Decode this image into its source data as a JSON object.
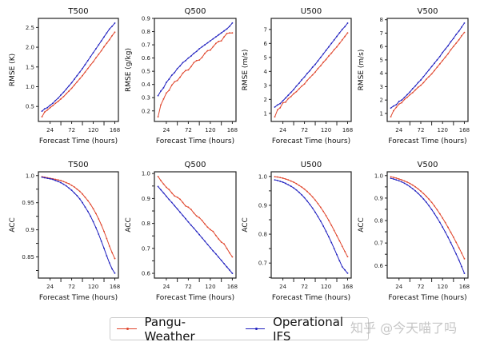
{
  "legend": {
    "position": "bottom-center",
    "items": [
      {
        "name": "Pangu-Weather",
        "color": "#e0452c"
      },
      {
        "name": "Operational IFS",
        "color": "#1f1fbf"
      }
    ]
  },
  "watermark": "知乎 @今天喵了吗",
  "chart_data": [
    {
      "type": "line",
      "title": "T500",
      "xlabel": "Forecast Time (hours)",
      "ylabel": "RMSE (K)",
      "x": [
        6,
        12,
        18,
        24,
        30,
        36,
        42,
        48,
        54,
        60,
        66,
        72,
        78,
        84,
        90,
        96,
        102,
        108,
        114,
        120,
        126,
        132,
        138,
        144,
        150,
        156,
        162,
        168
      ],
      "xticks": [
        24,
        72,
        120,
        168
      ],
      "xminor": [
        48,
        96,
        144
      ],
      "xlim": [
        -2,
        176
      ],
      "ylim": [
        0.12,
        2.73
      ],
      "yticks": [
        0.5,
        1.0,
        1.5,
        2.0,
        2.5
      ],
      "ytick_labels": [
        "0.5",
        "1.0",
        "1.5",
        "2.0",
        "2.5"
      ],
      "yminor": [],
      "series": [
        {
          "name": "Pangu-Weather",
          "values": [
            0.24,
            0.36,
            0.41,
            0.47,
            0.52,
            0.58,
            0.63,
            0.69,
            0.75,
            0.82,
            0.89,
            0.96,
            1.04,
            1.12,
            1.2,
            1.28,
            1.37,
            1.46,
            1.55,
            1.63,
            1.73,
            1.82,
            1.91,
            2.01,
            2.1,
            2.19,
            2.29,
            2.38
          ]
        },
        {
          "name": "Operational IFS",
          "values": [
            0.38,
            0.44,
            0.47,
            0.53,
            0.58,
            0.65,
            0.71,
            0.79,
            0.86,
            0.94,
            1.02,
            1.1,
            1.19,
            1.28,
            1.37,
            1.46,
            1.56,
            1.66,
            1.76,
            1.86,
            1.96,
            2.06,
            2.16,
            2.26,
            2.36,
            2.46,
            2.53,
            2.61
          ]
        }
      ]
    },
    {
      "type": "line",
      "title": "Q500",
      "xlabel": "Forecast Time (hours)",
      "ylabel": "RMSE (g/kg)",
      "x": [
        6,
        12,
        18,
        24,
        30,
        36,
        42,
        48,
        54,
        60,
        66,
        72,
        78,
        84,
        90,
        96,
        102,
        108,
        114,
        120,
        126,
        132,
        138,
        144,
        150,
        156,
        162,
        168
      ],
      "xticks": [
        24,
        72,
        120,
        168
      ],
      "xminor": [
        48,
        96,
        144
      ],
      "xlim": [
        -2,
        176
      ],
      "ylim": [
        0.12,
        0.9
      ],
      "yticks": [
        0.2,
        0.3,
        0.4,
        0.5,
        0.6,
        0.7,
        0.8,
        0.9
      ],
      "ytick_labels": [
        "0.2",
        "0.3",
        "0.4",
        "0.5",
        "0.6",
        "0.7",
        "0.8",
        "0.9"
      ],
      "yminor": [],
      "series": [
        {
          "name": "Pangu-Weather",
          "values": [
            0.155,
            0.245,
            0.29,
            0.335,
            0.355,
            0.395,
            0.42,
            0.43,
            0.455,
            0.485,
            0.505,
            0.51,
            0.535,
            0.565,
            0.58,
            0.585,
            0.605,
            0.635,
            0.655,
            0.66,
            0.685,
            0.71,
            0.725,
            0.73,
            0.76,
            0.785,
            0.79,
            0.79
          ]
        },
        {
          "name": "Operational IFS",
          "values": [
            0.315,
            0.35,
            0.375,
            0.415,
            0.44,
            0.47,
            0.49,
            0.52,
            0.54,
            0.565,
            0.58,
            0.6,
            0.615,
            0.635,
            0.65,
            0.67,
            0.685,
            0.7,
            0.715,
            0.73,
            0.745,
            0.76,
            0.775,
            0.79,
            0.805,
            0.82,
            0.84,
            0.865
          ]
        }
      ]
    },
    {
      "type": "line",
      "title": "U500",
      "xlabel": "Forecast Time (hours)",
      "ylabel": "RMSE (m/s)",
      "x": [
        6,
        12,
        18,
        24,
        30,
        36,
        42,
        48,
        54,
        60,
        66,
        72,
        78,
        84,
        90,
        96,
        102,
        108,
        114,
        120,
        126,
        132,
        138,
        144,
        150,
        156,
        162,
        168
      ],
      "xticks": [
        24,
        72,
        120,
        168
      ],
      "xminor": [
        48,
        96,
        144
      ],
      "xlim": [
        -2,
        176
      ],
      "ylim": [
        0.42,
        7.79
      ],
      "yticks": [
        1,
        2,
        3,
        4,
        5,
        6,
        7
      ],
      "ytick_labels": [
        "1",
        "2",
        "3",
        "4",
        "5",
        "6",
        "7"
      ],
      "yminor": [],
      "series": [
        {
          "name": "Pangu-Weather",
          "values": [
            0.75,
            1.25,
            1.4,
            1.75,
            1.8,
            2.05,
            2.2,
            2.4,
            2.55,
            2.75,
            2.95,
            3.1,
            3.35,
            3.55,
            3.75,
            3.95,
            4.2,
            4.4,
            4.65,
            4.85,
            5.1,
            5.3,
            5.55,
            5.75,
            6.0,
            6.25,
            6.5,
            6.75
          ]
        },
        {
          "name": "Operational IFS",
          "values": [
            1.45,
            1.6,
            1.7,
            1.9,
            2.1,
            2.3,
            2.5,
            2.7,
            2.95,
            3.15,
            3.4,
            3.6,
            3.85,
            4.05,
            4.3,
            4.5,
            4.75,
            5.0,
            5.25,
            5.5,
            5.75,
            6.0,
            6.25,
            6.5,
            6.75,
            7.0,
            7.2,
            7.45
          ]
        }
      ]
    },
    {
      "type": "line",
      "title": "V500",
      "xlabel": "Forecast Time (hours)",
      "ylabel": "RMSE (m/s)",
      "x": [
        6,
        12,
        18,
        24,
        30,
        36,
        42,
        48,
        54,
        60,
        66,
        72,
        78,
        84,
        90,
        96,
        102,
        108,
        114,
        120,
        126,
        132,
        138,
        144,
        150,
        156,
        162,
        168
      ],
      "xticks": [
        24,
        72,
        120,
        168
      ],
      "xminor": [
        48,
        96,
        144
      ],
      "xlim": [
        -2,
        176
      ],
      "ylim": [
        0.4,
        8.1
      ],
      "yticks": [
        1,
        2,
        3,
        4,
        5,
        6,
        7,
        8
      ],
      "ytick_labels": [
        "1",
        "2",
        "3",
        "4",
        "5",
        "6",
        "7",
        "8"
      ],
      "yminor": [],
      "series": [
        {
          "name": "Pangu-Weather",
          "values": [
            0.75,
            1.2,
            1.45,
            1.7,
            1.8,
            2.05,
            2.2,
            2.4,
            2.55,
            2.75,
            2.95,
            3.1,
            3.3,
            3.55,
            3.75,
            3.95,
            4.2,
            4.45,
            4.7,
            4.95,
            5.2,
            5.45,
            5.75,
            6.0,
            6.25,
            6.5,
            6.8,
            7.05
          ]
        },
        {
          "name": "Operational IFS",
          "values": [
            1.4,
            1.55,
            1.65,
            1.9,
            2.0,
            2.2,
            2.4,
            2.6,
            2.85,
            3.05,
            3.3,
            3.5,
            3.75,
            4.0,
            4.25,
            4.5,
            4.75,
            5.0,
            5.25,
            5.55,
            5.8,
            6.05,
            6.35,
            6.6,
            6.9,
            7.15,
            7.45,
            7.75
          ]
        }
      ]
    },
    {
      "type": "line",
      "title": "T500",
      "xlabel": "Forecast Time (hours)",
      "ylabel": "ACC",
      "x": [
        6,
        12,
        18,
        24,
        30,
        36,
        42,
        48,
        54,
        60,
        66,
        72,
        78,
        84,
        90,
        96,
        102,
        108,
        114,
        120,
        126,
        132,
        138,
        144,
        150,
        156,
        162,
        168
      ],
      "xticks": [
        24,
        72,
        120,
        168
      ],
      "xminor": [
        48,
        96,
        144
      ],
      "xlim": [
        -2,
        176
      ],
      "ylim": [
        0.811,
        1.007
      ],
      "yticks": [
        0.85,
        0.9,
        0.95,
        1.0
      ],
      "ytick_labels": [
        "0.85",
        "0.9",
        "0.95",
        "1.0"
      ],
      "yminor": [
        0.825,
        0.875,
        0.925,
        0.975
      ],
      "series": [
        {
          "name": "Pangu-Weather",
          "values": [
            0.998,
            0.997,
            0.996,
            0.995,
            0.994,
            0.993,
            0.992,
            0.991,
            0.989,
            0.987,
            0.985,
            0.982,
            0.979,
            0.975,
            0.971,
            0.966,
            0.96,
            0.954,
            0.947,
            0.939,
            0.93,
            0.92,
            0.909,
            0.897,
            0.884,
            0.87,
            0.858,
            0.847
          ]
        },
        {
          "name": "Operational IFS",
          "values": [
            0.997,
            0.996,
            0.995,
            0.994,
            0.993,
            0.991,
            0.989,
            0.987,
            0.984,
            0.981,
            0.977,
            0.973,
            0.968,
            0.963,
            0.957,
            0.95,
            0.942,
            0.934,
            0.925,
            0.915,
            0.904,
            0.892,
            0.879,
            0.866,
            0.852,
            0.839,
            0.828,
            0.82
          ]
        }
      ]
    },
    {
      "type": "line",
      "title": "Q500",
      "xlabel": "Forecast Time (hours)",
      "ylabel": "ACC",
      "x": [
        6,
        12,
        18,
        24,
        30,
        36,
        42,
        48,
        54,
        60,
        66,
        72,
        78,
        84,
        90,
        96,
        102,
        108,
        114,
        120,
        126,
        132,
        138,
        144,
        150,
        156,
        162,
        168
      ],
      "xticks": [
        24,
        72,
        120,
        168
      ],
      "xminor": [
        48,
        96,
        144
      ],
      "xlim": [
        -2,
        176
      ],
      "ylim": [
        0.581,
        1.007
      ],
      "yticks": [
        0.6,
        0.7,
        0.8,
        0.9,
        1.0
      ],
      "ytick_labels": [
        "0.6",
        "0.7",
        "0.8",
        "0.9",
        "1.0"
      ],
      "yminor": [
        0.65,
        0.75,
        0.85,
        0.95
      ],
      "series": [
        {
          "name": "Pangu-Weather",
          "values": [
            0.988,
            0.972,
            0.958,
            0.945,
            0.936,
            0.922,
            0.91,
            0.905,
            0.897,
            0.884,
            0.87,
            0.865,
            0.856,
            0.842,
            0.83,
            0.823,
            0.812,
            0.798,
            0.785,
            0.775,
            0.768,
            0.752,
            0.738,
            0.725,
            0.718,
            0.7,
            0.682,
            0.666
          ]
        },
        {
          "name": "Operational IFS",
          "values": [
            0.948,
            0.935,
            0.922,
            0.909,
            0.896,
            0.884,
            0.871,
            0.858,
            0.845,
            0.832,
            0.819,
            0.806,
            0.793,
            0.781,
            0.768,
            0.755,
            0.742,
            0.729,
            0.716,
            0.703,
            0.69,
            0.678,
            0.665,
            0.652,
            0.639,
            0.626,
            0.613,
            0.6
          ]
        }
      ]
    },
    {
      "type": "line",
      "title": "U500",
      "xlabel": "Forecast Time (hours)",
      "ylabel": "ACC",
      "x": [
        6,
        12,
        18,
        24,
        30,
        36,
        42,
        48,
        54,
        60,
        66,
        72,
        78,
        84,
        90,
        96,
        102,
        108,
        114,
        120,
        126,
        132,
        138,
        144,
        150,
        156,
        162,
        168
      ],
      "xticks": [
        24,
        72,
        120,
        168
      ],
      "xminor": [
        48,
        96,
        144
      ],
      "xlim": [
        -2,
        176
      ],
      "ylim": [
        0.648,
        1.016
      ],
      "yticks": [
        0.7,
        0.8,
        0.9,
        1.0
      ],
      "ytick_labels": [
        "0.7",
        "0.8",
        "0.9",
        "1.0"
      ],
      "yminor": [
        0.65,
        0.75,
        0.85,
        0.95
      ],
      "series": [
        {
          "name": "Pangu-Weather",
          "values": [
            0.999,
            0.998,
            0.996,
            0.994,
            0.991,
            0.988,
            0.984,
            0.98,
            0.975,
            0.969,
            0.963,
            0.956,
            0.948,
            0.939,
            0.929,
            0.918,
            0.906,
            0.893,
            0.879,
            0.864,
            0.848,
            0.831,
            0.813,
            0.795,
            0.777,
            0.758,
            0.74,
            0.722
          ]
        },
        {
          "name": "Operational IFS",
          "values": [
            0.988,
            0.986,
            0.983,
            0.98,
            0.976,
            0.971,
            0.966,
            0.96,
            0.953,
            0.945,
            0.936,
            0.926,
            0.915,
            0.903,
            0.89,
            0.876,
            0.861,
            0.845,
            0.828,
            0.81,
            0.791,
            0.771,
            0.75,
            0.729,
            0.708,
            0.687,
            0.676,
            0.665
          ]
        }
      ]
    },
    {
      "type": "line",
      "title": "V500",
      "xlabel": "Forecast Time (hours)",
      "ylabel": "ACC",
      "x": [
        6,
        12,
        18,
        24,
        30,
        36,
        42,
        48,
        54,
        60,
        66,
        72,
        78,
        84,
        90,
        96,
        102,
        108,
        114,
        120,
        126,
        132,
        138,
        144,
        150,
        156,
        162,
        168
      ],
      "xticks": [
        24,
        72,
        120,
        168
      ],
      "xminor": [
        48,
        96,
        144
      ],
      "xlim": [
        -2,
        176
      ],
      "ylim": [
        0.544,
        1.017
      ],
      "yticks": [
        0.6,
        0.7,
        0.8,
        0.9,
        1.0
      ],
      "ytick_labels": [
        "0.6",
        "0.7",
        "0.8",
        "0.9",
        "1.0"
      ],
      "yminor": [
        0.65,
        0.75,
        0.85,
        0.95
      ],
      "series": [
        {
          "name": "Pangu-Weather",
          "values": [
            0.995,
            0.992,
            0.989,
            0.985,
            0.981,
            0.976,
            0.971,
            0.965,
            0.958,
            0.95,
            0.941,
            0.931,
            0.92,
            0.908,
            0.895,
            0.881,
            0.865,
            0.848,
            0.83,
            0.811,
            0.791,
            0.77,
            0.748,
            0.726,
            0.703,
            0.679,
            0.655,
            0.63
          ]
        },
        {
          "name": "Operational IFS",
          "values": [
            0.988,
            0.985,
            0.981,
            0.977,
            0.972,
            0.966,
            0.959,
            0.951,
            0.942,
            0.932,
            0.921,
            0.909,
            0.896,
            0.882,
            0.866,
            0.849,
            0.831,
            0.812,
            0.792,
            0.771,
            0.749,
            0.726,
            0.702,
            0.677,
            0.651,
            0.624,
            0.595,
            0.565
          ]
        }
      ]
    }
  ]
}
